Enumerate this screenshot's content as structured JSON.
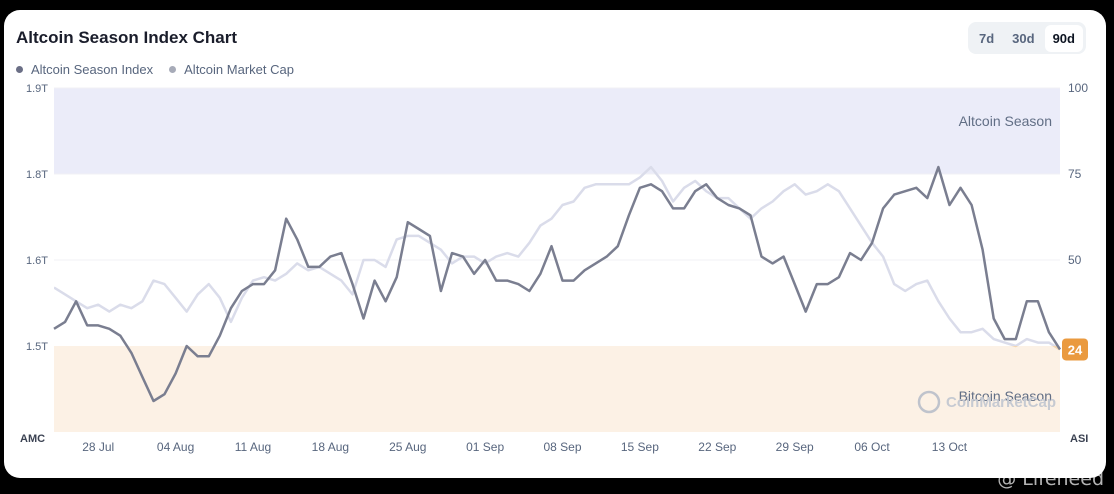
{
  "header": {
    "title": "Altcoin Season Index Chart"
  },
  "legend": [
    {
      "label": "Altcoin Season Index",
      "color": "#6b6f86"
    },
    {
      "label": "Altcoin Market Cap",
      "color": "#a7abb8"
    }
  ],
  "range_tabs": [
    {
      "label": "7d",
      "active": false
    },
    {
      "label": "30d",
      "active": false
    },
    {
      "label": "90d",
      "active": true
    }
  ],
  "zones": {
    "altcoin": "Altcoin Season",
    "bitcoin": "Bitcoin Season"
  },
  "brand": "CoinMarketCap",
  "badge": "24",
  "watermark": "@ Lifeneed",
  "colors": {
    "altcoin_zone": "#ebecf9",
    "bitcoin_zone": "#fcf1e5",
    "index_line": "#7a7e90",
    "mcap_line": "#dadcea",
    "mcap_line_bitcoin": "#f3d6b1",
    "badge": "#ea9a3f"
  },
  "chart_data": {
    "type": "line",
    "x_ticks": [
      "28 Jul",
      "04 Aug",
      "11 Aug",
      "18 Aug",
      "25 Aug",
      "01 Sep",
      "08 Sep",
      "15 Sep",
      "22 Sep",
      "29 Sep",
      "06 Oct",
      "13 Oct"
    ],
    "x_range": [
      -4,
      87
    ],
    "y_left": {
      "label": "AMC",
      "ticks": [
        "1.5T",
        "1.6T",
        "1.8T",
        "1.9T"
      ]
    },
    "y_right": {
      "label": "ASI",
      "ticks": [
        "50",
        "75",
        "100"
      ],
      "range": [
        0,
        100
      ]
    },
    "series": [
      {
        "name": "Altcoin Season Index",
        "values": [
          [
            -4,
            30
          ],
          [
            -3,
            32
          ],
          [
            -2,
            38
          ],
          [
            -1,
            31
          ],
          [
            0,
            31
          ],
          [
            1,
            30
          ],
          [
            2,
            28
          ],
          [
            3,
            23
          ],
          [
            4,
            16
          ],
          [
            5,
            9
          ],
          [
            6,
            11
          ],
          [
            7,
            17
          ],
          [
            8,
            25
          ],
          [
            9,
            22
          ],
          [
            10,
            22
          ],
          [
            11,
            28
          ],
          [
            12,
            36
          ],
          [
            13,
            41
          ],
          [
            14,
            43
          ],
          [
            15,
            43
          ],
          [
            16,
            47
          ],
          [
            17,
            62
          ],
          [
            18,
            56
          ],
          [
            19,
            48
          ],
          [
            20,
            48
          ],
          [
            21,
            51
          ],
          [
            22,
            52
          ],
          [
            23,
            43
          ],
          [
            24,
            33
          ],
          [
            25,
            44
          ],
          [
            26,
            38
          ],
          [
            27,
            45
          ],
          [
            28,
            61
          ],
          [
            29,
            59
          ],
          [
            30,
            57
          ],
          [
            31,
            41
          ],
          [
            32,
            52
          ],
          [
            33,
            51
          ],
          [
            34,
            46
          ],
          [
            35,
            50
          ],
          [
            36,
            44
          ],
          [
            37,
            44
          ],
          [
            38,
            43
          ],
          [
            39,
            41
          ],
          [
            40,
            46
          ],
          [
            41,
            54
          ],
          [
            42,
            44
          ],
          [
            43,
            44
          ],
          [
            44,
            47
          ],
          [
            45,
            49
          ],
          [
            46,
            51
          ],
          [
            47,
            54
          ],
          [
            48,
            63
          ],
          [
            49,
            71
          ],
          [
            50,
            72
          ],
          [
            51,
            70
          ],
          [
            52,
            65
          ],
          [
            53,
            65
          ],
          [
            54,
            70
          ],
          [
            55,
            72
          ],
          [
            56,
            68
          ],
          [
            57,
            66
          ],
          [
            58,
            65
          ],
          [
            59,
            63
          ],
          [
            60,
            51
          ],
          [
            61,
            49
          ],
          [
            62,
            51
          ],
          [
            63,
            43
          ],
          [
            64,
            35
          ],
          [
            65,
            43
          ],
          [
            66,
            43
          ],
          [
            67,
            45
          ],
          [
            68,
            52
          ],
          [
            69,
            50
          ],
          [
            70,
            55
          ],
          [
            71,
            65
          ],
          [
            72,
            69
          ],
          [
            73,
            70
          ],
          [
            74,
            71
          ],
          [
            75,
            68
          ],
          [
            76,
            77
          ],
          [
            77,
            66
          ],
          [
            78,
            71
          ],
          [
            79,
            66
          ],
          [
            80,
            53
          ],
          [
            81,
            33
          ],
          [
            82,
            27
          ],
          [
            83,
            27
          ],
          [
            84,
            38
          ],
          [
            85,
            38
          ],
          [
            86,
            29
          ],
          [
            87,
            24
          ]
        ]
      },
      {
        "name": "Altcoin Market Cap",
        "values": [
          [
            -4,
            42
          ],
          [
            -3,
            40
          ],
          [
            -2,
            38
          ],
          [
            -1,
            36
          ],
          [
            0,
            37
          ],
          [
            1,
            35
          ],
          [
            2,
            37
          ],
          [
            3,
            36
          ],
          [
            4,
            38
          ],
          [
            5,
            44
          ],
          [
            6,
            43
          ],
          [
            7,
            39
          ],
          [
            8,
            35
          ],
          [
            9,
            40
          ],
          [
            10,
            43
          ],
          [
            11,
            39
          ],
          [
            12,
            32
          ],
          [
            13,
            39
          ],
          [
            14,
            44
          ],
          [
            15,
            45
          ],
          [
            16,
            44
          ],
          [
            17,
            46
          ],
          [
            18,
            49
          ],
          [
            19,
            47
          ],
          [
            20,
            48
          ],
          [
            21,
            46
          ],
          [
            22,
            44
          ],
          [
            23,
            40
          ],
          [
            24,
            50
          ],
          [
            25,
            50
          ],
          [
            26,
            48
          ],
          [
            27,
            56
          ],
          [
            28,
            57
          ],
          [
            29,
            57
          ],
          [
            30,
            55
          ],
          [
            31,
            53
          ],
          [
            32,
            49
          ],
          [
            33,
            51
          ],
          [
            34,
            51
          ],
          [
            35,
            49
          ],
          [
            36,
            51
          ],
          [
            37,
            52
          ],
          [
            38,
            51
          ],
          [
            39,
            55
          ],
          [
            40,
            60
          ],
          [
            41,
            62
          ],
          [
            42,
            66
          ],
          [
            43,
            67
          ],
          [
            44,
            71
          ],
          [
            45,
            72
          ],
          [
            46,
            72
          ],
          [
            47,
            72
          ],
          [
            48,
            72
          ],
          [
            49,
            74
          ],
          [
            50,
            77
          ],
          [
            51,
            73
          ],
          [
            52,
            67
          ],
          [
            53,
            71
          ],
          [
            54,
            73
          ],
          [
            55,
            70
          ],
          [
            56,
            68
          ],
          [
            57,
            68
          ],
          [
            58,
            65
          ],
          [
            59,
            62
          ],
          [
            60,
            65
          ],
          [
            61,
            67
          ],
          [
            62,
            70
          ],
          [
            63,
            72
          ],
          [
            64,
            69
          ],
          [
            65,
            70
          ],
          [
            66,
            72
          ],
          [
            67,
            70
          ],
          [
            68,
            65
          ],
          [
            69,
            60
          ],
          [
            70,
            55
          ],
          [
            71,
            51
          ],
          [
            72,
            43
          ],
          [
            73,
            41
          ],
          [
            74,
            43
          ],
          [
            75,
            44
          ],
          [
            76,
            38
          ],
          [
            77,
            33
          ],
          [
            78,
            29
          ],
          [
            79,
            29
          ],
          [
            80,
            30
          ],
          [
            81,
            27
          ],
          [
            82,
            26
          ],
          [
            83,
            25
          ],
          [
            84,
            27
          ],
          [
            85,
            26
          ],
          [
            86,
            26
          ],
          [
            87,
            24
          ]
        ]
      }
    ]
  }
}
